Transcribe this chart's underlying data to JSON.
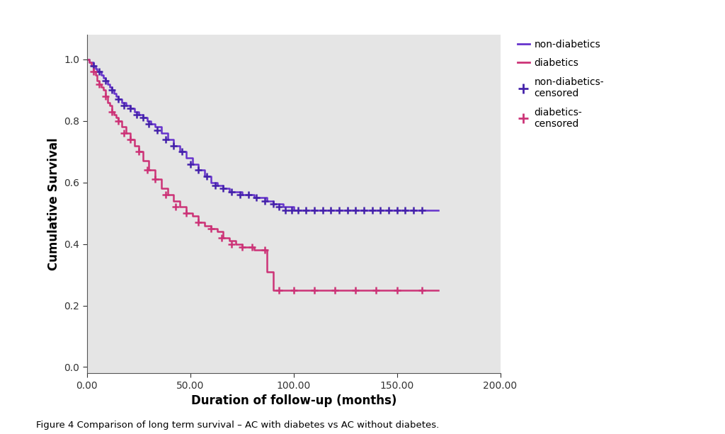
{
  "non_diabetics": {
    "color": "#6633CC",
    "step_x": [
      0,
      1,
      2,
      3,
      4,
      5,
      6,
      7,
      8,
      9,
      10,
      11,
      12,
      13,
      14,
      15,
      17,
      19,
      21,
      23,
      25,
      27,
      29,
      31,
      33,
      36,
      39,
      42,
      45,
      48,
      51,
      54,
      57,
      60,
      63,
      66,
      69,
      72,
      75,
      78,
      81,
      84,
      87,
      90,
      95,
      100,
      105,
      110,
      115,
      120,
      125,
      130,
      135,
      140,
      145,
      150,
      155,
      160,
      165,
      170
    ],
    "step_y": [
      1.0,
      0.99,
      0.99,
      0.98,
      0.97,
      0.96,
      0.96,
      0.95,
      0.94,
      0.93,
      0.92,
      0.91,
      0.9,
      0.89,
      0.88,
      0.87,
      0.86,
      0.85,
      0.84,
      0.83,
      0.82,
      0.81,
      0.8,
      0.79,
      0.78,
      0.76,
      0.74,
      0.72,
      0.7,
      0.68,
      0.66,
      0.64,
      0.62,
      0.6,
      0.59,
      0.58,
      0.57,
      0.57,
      0.56,
      0.56,
      0.55,
      0.55,
      0.54,
      0.53,
      0.52,
      0.51,
      0.51,
      0.51,
      0.51,
      0.51,
      0.51,
      0.51,
      0.51,
      0.51,
      0.51,
      0.51,
      0.51,
      0.51,
      0.51,
      0.51
    ],
    "censored_x": [
      3,
      6,
      9,
      12,
      15,
      18,
      21,
      24,
      27,
      30,
      34,
      38,
      42,
      46,
      50,
      54,
      58,
      62,
      66,
      70,
      74,
      78,
      82,
      86,
      90,
      93,
      96,
      99,
      102,
      106,
      110,
      114,
      118,
      122,
      126,
      130,
      134,
      138,
      142,
      146,
      150,
      154,
      158,
      162
    ],
    "censored_y": [
      0.98,
      0.96,
      0.93,
      0.9,
      0.87,
      0.85,
      0.84,
      0.82,
      0.81,
      0.79,
      0.77,
      0.74,
      0.72,
      0.7,
      0.66,
      0.64,
      0.62,
      0.59,
      0.58,
      0.57,
      0.56,
      0.56,
      0.55,
      0.54,
      0.53,
      0.52,
      0.51,
      0.51,
      0.51,
      0.51,
      0.51,
      0.51,
      0.51,
      0.51,
      0.51,
      0.51,
      0.51,
      0.51,
      0.51,
      0.51,
      0.51,
      0.51,
      0.51,
      0.51
    ]
  },
  "diabetics": {
    "color": "#CC3377",
    "step_x": [
      0,
      1,
      2,
      3,
      4,
      5,
      6,
      7,
      8,
      9,
      10,
      11,
      12,
      13,
      14,
      15,
      17,
      19,
      21,
      23,
      25,
      27,
      30,
      33,
      36,
      39,
      42,
      45,
      48,
      51,
      54,
      57,
      60,
      63,
      66,
      69,
      72,
      75,
      78,
      81,
      84,
      87,
      90,
      95,
      100,
      110,
      120,
      130,
      140,
      150,
      160,
      165,
      170
    ],
    "step_y": [
      1.0,
      0.99,
      0.98,
      0.96,
      0.95,
      0.93,
      0.92,
      0.91,
      0.9,
      0.88,
      0.86,
      0.85,
      0.83,
      0.82,
      0.81,
      0.8,
      0.78,
      0.76,
      0.74,
      0.72,
      0.7,
      0.67,
      0.64,
      0.61,
      0.58,
      0.56,
      0.54,
      0.52,
      0.5,
      0.49,
      0.47,
      0.46,
      0.45,
      0.44,
      0.42,
      0.41,
      0.4,
      0.39,
      0.39,
      0.38,
      0.38,
      0.31,
      0.25,
      0.25,
      0.25,
      0.25,
      0.25,
      0.25,
      0.25,
      0.25,
      0.25,
      0.25,
      0.25
    ],
    "censored_x": [
      3,
      6,
      9,
      12,
      15,
      18,
      21,
      25,
      29,
      33,
      38,
      43,
      48,
      54,
      60,
      65,
      70,
      75,
      80,
      86,
      93,
      100,
      110,
      120,
      130,
      140,
      150,
      162
    ],
    "censored_y": [
      0.96,
      0.92,
      0.88,
      0.83,
      0.8,
      0.76,
      0.74,
      0.7,
      0.64,
      0.61,
      0.56,
      0.52,
      0.5,
      0.47,
      0.45,
      0.42,
      0.4,
      0.39,
      0.39,
      0.38,
      0.25,
      0.25,
      0.25,
      0.25,
      0.25,
      0.25,
      0.25,
      0.25
    ]
  },
  "xlabel": "Duration of follow-up (months)",
  "ylabel": "Cumulative Survival",
  "xlim": [
    0,
    200
  ],
  "ylim": [
    -0.02,
    1.08
  ],
  "xticks": [
    0.0,
    50.0,
    100.0,
    150.0,
    200.0
  ],
  "yticks": [
    0.0,
    0.2,
    0.4,
    0.6,
    0.8,
    1.0
  ],
  "xtick_labels": [
    "0.00",
    "50.00",
    "100.00",
    "150.00",
    "200.00"
  ],
  "ytick_labels": [
    "0.0",
    "0.2",
    "0.4",
    "0.6",
    "0.8",
    "1.0"
  ],
  "plot_bg_color": "#E5E5E5",
  "fig_bg_color": "#FFFFFF",
  "caption": "Figure 4 Comparison of long term survival – AC with diabetes vs AC without diabetes.",
  "non_diabetics_color": "#6633CC",
  "diabetics_color": "#CC3377",
  "non_diabetics_censored_color": "#4422AA",
  "diabetics_censored_color": "#CC3377",
  "legend_labels": [
    "non-diabetics",
    "diabetics",
    "non-diabetics-\ncensored",
    "diabetics-\ncensored"
  ]
}
